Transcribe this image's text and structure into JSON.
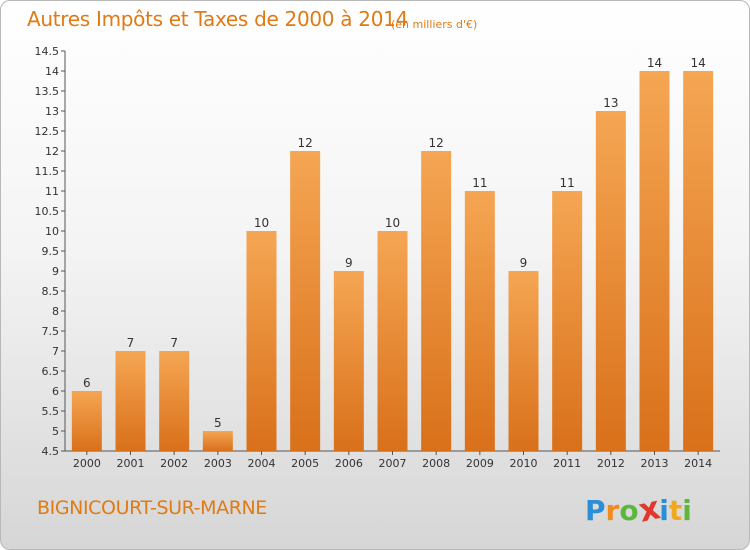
{
  "chart_data": {
    "type": "bar",
    "title": "Autres Impôts et Taxes de 2000 à 2014",
    "subtitle": "(en milliers d'€)",
    "categories": [
      "2000",
      "2001",
      "2002",
      "2003",
      "2004",
      "2005",
      "2006",
      "2007",
      "2008",
      "2009",
      "2010",
      "2011",
      "2012",
      "2013",
      "2014"
    ],
    "values": [
      6,
      7,
      7,
      5,
      10,
      12,
      9,
      10,
      12,
      11,
      9,
      11,
      13,
      14,
      14
    ],
    "value_labels": [
      "6",
      "7",
      "7",
      "5",
      "10",
      "12",
      "9",
      "10",
      "12",
      "11",
      "9",
      "11",
      "13",
      "14",
      "14"
    ],
    "ylim": [
      4.5,
      14.5
    ],
    "yticks": [
      "4.5",
      "5",
      "5.5",
      "6",
      "6.5",
      "7",
      "7.5",
      "8",
      "8.5",
      "9",
      "9.5",
      "10",
      "10.5",
      "11",
      "11.5",
      "12",
      "12.5",
      "13",
      "13.5",
      "14",
      "14.5"
    ],
    "grid": false,
    "bar_color": "#f19a3e"
  },
  "place_name": "BIGNICOURT-SUR-MARNE",
  "logo": {
    "letters": [
      "P",
      "r",
      "o",
      "x",
      "i",
      "t",
      "i"
    ],
    "colors": [
      "#2a8fd6",
      "#f08c1e",
      "#5cb83a",
      "#e2382c",
      "#2a8fd6",
      "#f0a81e",
      "#5cb83a"
    ]
  }
}
